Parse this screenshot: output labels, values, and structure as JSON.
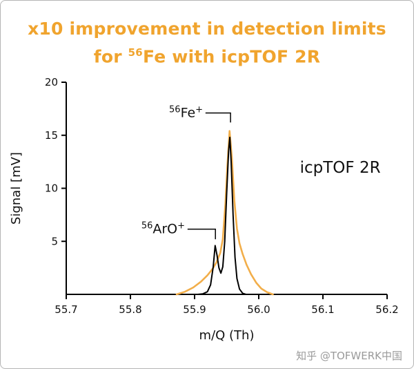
{
  "title": {
    "line1": "x10 improvement in detection limits",
    "line2_pre": "for ",
    "line2_sup": "56",
    "line2_post": "Fe with icpTOF 2R",
    "color": "#F0A42E"
  },
  "watermark": {
    "text": "知乎 @TOFWERK中国",
    "color": "#9A9A9A"
  },
  "chart_data": {
    "type": "line",
    "title": "x10 improvement in detection limits for ⁵⁶Fe with icpTOF 2R",
    "xlabel": "m/Q (Th)",
    "ylabel": "Signal [mV]",
    "xlim": [
      55.7,
      56.2
    ],
    "ylim": [
      0,
      20
    ],
    "xtick_labels": [
      "55.7",
      "55.8",
      "55.9",
      "56.0",
      "56.1",
      "56.2"
    ],
    "ytick_labels": [
      "5",
      "10",
      "15",
      "20"
    ],
    "grid": false,
    "legend": "none",
    "inset_label": {
      "text": "icpTOF 2R",
      "x": 56.127,
      "y": 12.0
    },
    "series": [
      {
        "name": "orange-curve",
        "color": "#F2AE4A",
        "stroke_width": 2.6,
        "points": [
          [
            55.872,
            0
          ],
          [
            55.885,
            0.25
          ],
          [
            55.898,
            0.65
          ],
          [
            55.91,
            1.2
          ],
          [
            55.92,
            1.8
          ],
          [
            55.928,
            2.4
          ],
          [
            55.934,
            3.0
          ],
          [
            55.94,
            3.9
          ],
          [
            55.944,
            5.2
          ],
          [
            55.948,
            8.5
          ],
          [
            55.951,
            12.0
          ],
          [
            55.9545,
            15.4
          ],
          [
            55.958,
            13.0
          ],
          [
            55.962,
            8.8
          ],
          [
            55.966,
            6.2
          ],
          [
            55.97,
            4.8
          ],
          [
            55.975,
            3.8
          ],
          [
            55.981,
            2.8
          ],
          [
            55.988,
            1.9
          ],
          [
            55.996,
            1.1
          ],
          [
            56.004,
            0.55
          ],
          [
            56.013,
            0.2
          ],
          [
            56.022,
            0
          ]
        ]
      },
      {
        "name": "black-curve",
        "color": "#000000",
        "stroke_width": 2.0,
        "points": [
          [
            55.905,
            0
          ],
          [
            55.913,
            0.05
          ],
          [
            55.92,
            0.25
          ],
          [
            55.925,
            0.9
          ],
          [
            55.929,
            2.6
          ],
          [
            55.932,
            4.6
          ],
          [
            55.935,
            3.7
          ],
          [
            55.938,
            2.5
          ],
          [
            55.941,
            2.0
          ],
          [
            55.944,
            2.6
          ],
          [
            55.947,
            5.0
          ],
          [
            55.95,
            9.5
          ],
          [
            55.953,
            13.5
          ],
          [
            55.955,
            14.8
          ],
          [
            55.957,
            12.5
          ],
          [
            55.96,
            7.5
          ],
          [
            55.963,
            3.5
          ],
          [
            55.966,
            1.5
          ],
          [
            55.97,
            0.5
          ],
          [
            55.975,
            0.1
          ],
          [
            55.98,
            0
          ]
        ]
      }
    ],
    "annotations": [
      {
        "label": "⁵⁶Fe⁺",
        "sup1": "56",
        "base": "Fe",
        "sup2": "+",
        "line": [
          [
            55.917,
            17.1
          ],
          [
            55.956,
            17.1
          ],
          [
            55.956,
            16.2
          ]
        ],
        "text_x": 55.913,
        "text_y": 17.1
      },
      {
        "label": "⁵⁶ArO⁺",
        "sup1": "56",
        "base": "ArO",
        "sup2": "+",
        "line": [
          [
            55.889,
            6.15
          ],
          [
            55.9325,
            6.15
          ],
          [
            55.9325,
            5.2
          ]
        ],
        "text_x": 55.885,
        "text_y": 6.15
      }
    ]
  }
}
